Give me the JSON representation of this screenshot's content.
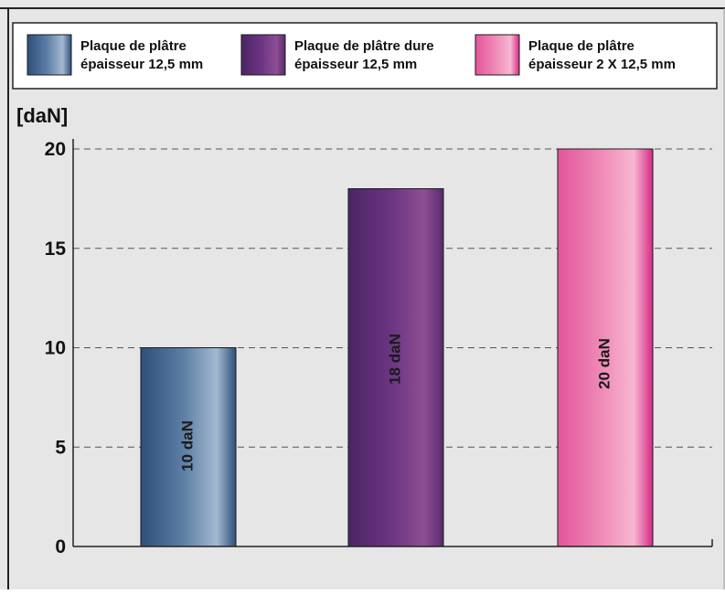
{
  "chart_data": {
    "type": "bar",
    "ylabel": "[daN]",
    "xlabel": "",
    "ylim": [
      0,
      20
    ],
    "yticks": [
      "0",
      "5",
      "10",
      "15",
      "20"
    ],
    "grid": "horizontal dashed",
    "legend_position": "top",
    "series": [
      {
        "name_lines": [
          "Plaque de plâtre",
          "épaisseur 12,5 mm"
        ],
        "value": 10,
        "label": "10 daN",
        "colors": [
          "#2e4f7a",
          "#5d7ea5",
          "#a4b9d2",
          "#2e4f7a"
        ]
      },
      {
        "name_lines": [
          "Plaque de plâtre dure",
          "épaisseur 12,5 mm"
        ],
        "value": 18,
        "label": "18 daN",
        "colors": [
          "#4b2564",
          "#6b3583",
          "#8e4e92",
          "#5a2a6e"
        ]
      },
      {
        "name_lines": [
          "Plaque de plâtre",
          "épaisseur 2 X 12,5 mm"
        ],
        "value": 20,
        "label": "20 daN",
        "colors": [
          "#e2559a",
          "#ef89b6",
          "#f7b7d2",
          "#d62a86"
        ]
      }
    ]
  }
}
